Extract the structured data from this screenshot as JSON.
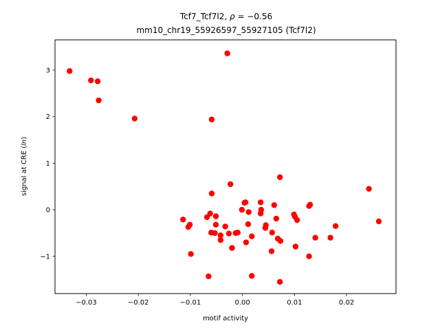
{
  "chart_data": {
    "type": "scatter",
    "title_line1_prefix": "Tcf7_Tcf7l2, ",
    "title_line1_rho": "ρ",
    "title_line1_value": " = −0.56",
    "title_line2": "mm10_chr19_55926597_55927105 (Tcf7l2)",
    "xlabel": "motif activity",
    "ylabel_prefix": "signal at CRE (",
    "ylabel_italic": "ln",
    "ylabel_suffix": ")",
    "xlim": [
      -0.036,
      0.0295
    ],
    "ylim": [
      -1.8,
      3.65
    ],
    "xticks": [
      -0.03,
      -0.02,
      -0.01,
      0.0,
      0.01,
      0.02
    ],
    "xtick_labels": [
      "−0.03",
      "−0.02",
      "−0.01",
      "0.00",
      "0.01",
      "0.02"
    ],
    "yticks": [
      -1,
      0,
      1,
      2,
      3
    ],
    "ytick_labels": [
      "−1",
      "0",
      "1",
      "2",
      "3"
    ],
    "marker_color": "#ff0000",
    "grid": false,
    "points": [
      {
        "x": -0.0332,
        "y": 2.98
      },
      {
        "x": -0.0291,
        "y": 2.78
      },
      {
        "x": -0.0278,
        "y": 2.76
      },
      {
        "x": -0.0276,
        "y": 2.35
      },
      {
        "x": -0.0207,
        "y": 1.96
      },
      {
        "x": -0.0029,
        "y": 3.36
      },
      {
        "x": -0.0059,
        "y": 1.94
      },
      {
        "x": 0.0072,
        "y": 0.7
      },
      {
        "x": -0.0023,
        "y": 0.55
      },
      {
        "x": -0.0059,
        "y": 0.35
      },
      {
        "x": 0.0243,
        "y": 0.45
      },
      {
        "x": 0.0262,
        "y": -0.25
      },
      {
        "x": 0.0004,
        "y": 0.15
      },
      {
        "x": 0.0006,
        "y": 0.16
      },
      {
        "x": 0.0035,
        "y": 0.16
      },
      {
        "x": 0.0061,
        "y": 0.1
      },
      {
        "x": 0.013,
        "y": 0.11
      },
      {
        "x": 0.0128,
        "y": 0.08
      },
      {
        "x": 0.0036,
        "y": 0.0
      },
      {
        "x": -0.0001,
        "y": 0.0
      },
      {
        "x": 0.0012,
        "y": -0.05
      },
      {
        "x": 0.0035,
        "y": -0.08
      },
      {
        "x": -0.0062,
        "y": -0.08
      },
      {
        "x": -0.0068,
        "y": -0.16
      },
      {
        "x": -0.0051,
        "y": -0.14
      },
      {
        "x": 0.0099,
        "y": -0.1
      },
      {
        "x": 0.0101,
        "y": -0.15
      },
      {
        "x": 0.0105,
        "y": -0.22
      },
      {
        "x": 0.0065,
        "y": -0.19
      },
      {
        "x": -0.0114,
        "y": -0.21
      },
      {
        "x": -0.0101,
        "y": -0.32
      },
      {
        "x": -0.0104,
        "y": -0.37
      },
      {
        "x": -0.0051,
        "y": -0.32
      },
      {
        "x": -0.0033,
        "y": -0.36
      },
      {
        "x": 0.0011,
        "y": -0.31
      },
      {
        "x": 0.0045,
        "y": -0.33
      },
      {
        "x": 0.0044,
        "y": -0.39
      },
      {
        "x": 0.0179,
        "y": -0.35
      },
      {
        "x": -0.006,
        "y": -0.49
      },
      {
        "x": -0.0053,
        "y": -0.5
      },
      {
        "x": -0.0042,
        "y": -0.55
      },
      {
        "x": -0.0026,
        "y": -0.51
      },
      {
        "x": -0.0013,
        "y": -0.5
      },
      {
        "x": -0.0009,
        "y": -0.49
      },
      {
        "x": 0.0018,
        "y": -0.57
      },
      {
        "x": 0.0057,
        "y": -0.49
      },
      {
        "x": 0.0068,
        "y": -0.62
      },
      {
        "x": 0.0073,
        "y": -0.67
      },
      {
        "x": 0.014,
        "y": -0.6
      },
      {
        "x": 0.0169,
        "y": -0.6
      },
      {
        "x": -0.0042,
        "y": -0.65
      },
      {
        "x": 0.0007,
        "y": -0.7
      },
      {
        "x": -0.002,
        "y": -0.82
      },
      {
        "x": 0.0102,
        "y": -0.79
      },
      {
        "x": 0.0056,
        "y": -0.89
      },
      {
        "x": -0.0099,
        "y": -0.95
      },
      {
        "x": 0.0128,
        "y": -1.0
      },
      {
        "x": -0.0065,
        "y": -1.43
      },
      {
        "x": 0.0018,
        "y": -1.42
      },
      {
        "x": 0.0072,
        "y": -1.55
      }
    ]
  }
}
